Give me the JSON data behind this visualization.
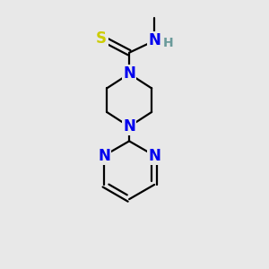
{
  "background_color": "#e8e8e8",
  "atom_colors": {
    "N": "#0000ee",
    "S": "#cccc00",
    "C": "#000000",
    "H": "#6a9a9a"
  },
  "bond_color": "#000000",
  "figsize": [
    3.0,
    3.0
  ],
  "dpi": 100
}
